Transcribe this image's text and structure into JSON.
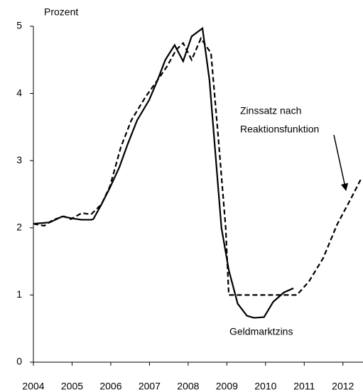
{
  "chart_data": {
    "type": "line",
    "y_unit_label": "Prozent",
    "xlim": [
      2004,
      2012.5
    ],
    "xticks": [
      2004,
      2005,
      2006,
      2007,
      2008,
      2009,
      2010,
      2011,
      2012
    ],
    "ylim": [
      0,
      5
    ],
    "yticks": [
      0,
      1,
      2,
      3,
      4,
      5
    ],
    "grid": false,
    "series": [
      {
        "name": "Geldmarktzins",
        "color": "#000000",
        "dash": false,
        "x": [
          2004.0,
          2004.42,
          2004.75,
          2005.0,
          2005.25,
          2005.5,
          2005.55,
          2005.76,
          2005.98,
          2006.22,
          2006.44,
          2006.68,
          2006.99,
          2007.21,
          2007.41,
          2007.65,
          2007.87,
          2008.09,
          2008.37,
          2008.55,
          2008.86,
          2009.05,
          2009.28,
          2009.52,
          2009.7,
          2009.96,
          2010.2,
          2010.48,
          2010.72
        ],
        "values": [
          2.06,
          2.08,
          2.17,
          2.14,
          2.12,
          2.12,
          2.13,
          2.35,
          2.6,
          2.9,
          3.25,
          3.6,
          3.9,
          4.2,
          4.5,
          4.72,
          4.48,
          4.85,
          4.97,
          4.2,
          2.0,
          1.37,
          0.87,
          0.69,
          0.66,
          0.67,
          0.9,
          1.04,
          1.1
        ]
      },
      {
        "name": "Zinssatz nach Reaktionsfunktion",
        "label_lines": [
          "Zinssatz nach",
          "Reaktionsfunktion"
        ],
        "color": "#000000",
        "dash": true,
        "x": [
          2004.0,
          2004.28,
          2004.51,
          2004.79,
          2004.97,
          2005.25,
          2005.49,
          2005.76,
          2005.98,
          2006.26,
          2006.53,
          2006.9,
          2007.21,
          2007.45,
          2007.69,
          2007.87,
          2008.09,
          2008.33,
          2008.59,
          2008.77,
          2008.97,
          2009.05,
          2010.81,
          2011.12,
          2011.49,
          2011.85,
          2012.22,
          2012.46
        ],
        "values": [
          2.06,
          2.03,
          2.12,
          2.17,
          2.13,
          2.22,
          2.2,
          2.35,
          2.62,
          3.2,
          3.6,
          3.95,
          4.2,
          4.4,
          4.65,
          4.75,
          4.5,
          4.82,
          4.6,
          3.4,
          2.0,
          1.0,
          1.0,
          1.2,
          1.55,
          2.05,
          2.45,
          2.72
        ]
      }
    ]
  }
}
